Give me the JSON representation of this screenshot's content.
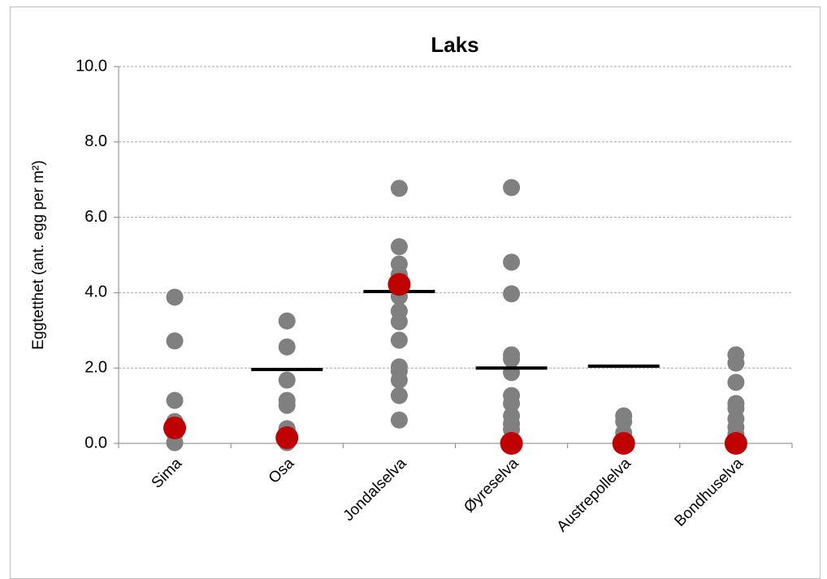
{
  "chart_data": {
    "type": "dot",
    "title": "Laks",
    "y_label": "Eggtetthet (ant. egg per m²)",
    "categories": [
      "Sima",
      "Osa",
      "Jondalselva",
      "Øyreselva",
      "Austrepollelva",
      "Bondhuselva"
    ],
    "series": [
      {
        "color": "#808080",
        "values": [
          [
            3.88,
            2.72,
            1.14,
            0.58,
            0.25,
            0.02
          ],
          [
            3.25,
            2.56,
            1.68,
            1.14,
            1.01,
            0.39,
            0.1,
            0.02
          ],
          [
            6.77,
            5.22,
            4.76,
            4.48,
            4.18,
            3.9,
            3.51,
            3.23,
            2.74,
            2.03,
            1.92,
            1.68,
            1.27,
            0.62
          ],
          [
            6.79,
            4.81,
            3.97,
            2.35,
            2.24,
            1.88,
            1.27,
            1.06,
            0.73,
            0.52,
            0.37,
            0
          ],
          [
            0.73,
            0.58,
            0.28
          ],
          [
            2.35,
            2.13,
            1.62,
            1.06,
            0.93,
            0.65,
            0.43,
            0.24
          ]
        ]
      },
      {
        "color": "#c00000",
        "values": [
          0.41,
          0.15,
          4.22,
          0,
          0,
          0
        ]
      },
      {
        "color": "#000000",
        "values": [
          null,
          1.96,
          4.03,
          2.0,
          2.05,
          null
        ]
      }
    ],
    "ylim": [
      0,
      10
    ],
    "yticks": [
      {
        "value": 0,
        "label": "0.0"
      },
      {
        "value": 2,
        "label": "2.0"
      },
      {
        "value": 4,
        "label": "4.0"
      },
      {
        "value": 6,
        "label": "6.0"
      },
      {
        "value": 8,
        "label": "8.0"
      },
      {
        "value": 10,
        "label": "10.0"
      }
    ],
    "grid": true
  }
}
